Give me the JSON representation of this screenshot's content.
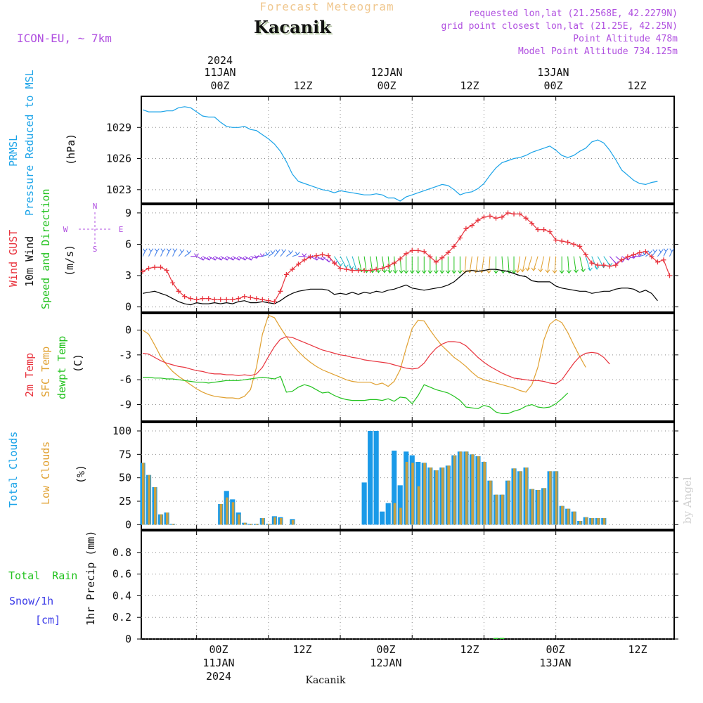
{
  "header": {
    "subtitle": "Forecast Meteogram",
    "title": "Kacanik",
    "model": "ICON-EU, ~ 7km",
    "requested": "requested lon,lat (21.2568E, 42.2279N)",
    "grid_point": "grid point closest lon,lat (21.25E, 42.25N)",
    "point_altitude": "Point Altitude 478m",
    "model_altitude": "Model Point Altitude 734.125m"
  },
  "footer": {
    "place": "Kacanik",
    "credit": "by Angel"
  },
  "colors": {
    "pressure": "#1aa3e8",
    "gust": "#e8333d",
    "wind": "#000000",
    "direction": "#22c21e",
    "t2m": "#e8333d",
    "sfc": "#e0a030",
    "dewpt": "#22c21e",
    "total_clouds": "#1a9ae8",
    "low_clouds": "#c8a040",
    "rain": "#22c21e",
    "snow": "#3a3ae8",
    "header_title_shadow": "#b8c8a8",
    "subtitle": "#f0c890",
    "info": "#b050e0"
  },
  "time_axis": {
    "top_labels": [
      {
        "line1": "2024",
        "line2": "11JAN",
        "line3": "00Z"
      },
      {
        "line1": "",
        "line2": "",
        "line3": "12Z"
      },
      {
        "line1": "",
        "line2": "12JAN",
        "line3": "00Z"
      },
      {
        "line1": "",
        "line2": "",
        "line3": "12Z"
      },
      {
        "line1": "",
        "line2": "13JAN",
        "line3": "00Z"
      },
      {
        "line1": "",
        "line2": "",
        "line3": "12Z"
      }
    ],
    "bottom_labels": [
      {
        "line1": "00Z",
        "line2": "11JAN",
        "line3": "2024"
      },
      {
        "line1": "12Z",
        "line2": "",
        "line3": ""
      },
      {
        "line1": "00Z",
        "line2": "12JAN",
        "line3": ""
      },
      {
        "line1": "12Z",
        "line2": "",
        "line3": ""
      },
      {
        "line1": "00Z",
        "line2": "13JAN",
        "line3": ""
      },
      {
        "line1": "12Z",
        "line2": "",
        "line3": ""
      }
    ],
    "tick_hours": [
      9,
      21,
      33,
      45,
      57,
      69
    ]
  },
  "chart_data": [
    {
      "type": "line",
      "panel": "pressure",
      "ylabel_lines": [
        "PRMSL",
        "Pressure Reduced to MSL"
      ],
      "unit": "(hPa)",
      "x_hours_start": 0,
      "x_hours_step": 1,
      "ylim": [
        1021.7,
        1032.0
      ],
      "yticks": [
        1023,
        1026,
        1029
      ],
      "series": [
        {
          "name": "PRMSL",
          "values": [
            1030.7,
            1030.5,
            1030.5,
            1030.5,
            1030.6,
            1030.6,
            1030.9,
            1031.0,
            1030.9,
            1030.5,
            1030.1,
            1030.0,
            1030.0,
            1029.5,
            1029.1,
            1029.0,
            1029.0,
            1029.1,
            1028.8,
            1028.7,
            1028.3,
            1027.9,
            1027.4,
            1026.7,
            1025.7,
            1024.5,
            1023.8,
            1023.6,
            1023.4,
            1023.2,
            1023.0,
            1022.9,
            1022.7,
            1022.9,
            1022.8,
            1022.7,
            1022.6,
            1022.5,
            1022.5,
            1022.6,
            1022.5,
            1022.2,
            1022.2,
            1021.9,
            1022.3,
            1022.5,
            1022.7,
            1022.9,
            1023.1,
            1023.3,
            1023.5,
            1023.4,
            1023.0,
            1022.5,
            1022.7,
            1022.8,
            1023.1,
            1023.6,
            1024.4,
            1025.1,
            1025.6,
            1025.8,
            1026.0,
            1026.1,
            1026.3,
            1026.6,
            1026.8,
            1027.0,
            1027.2,
            1026.8,
            1026.3,
            1026.1,
            1026.3,
            1026.7,
            1027.0,
            1027.6,
            1027.8,
            1027.5,
            1026.8,
            1025.9,
            1024.9,
            1024.4,
            1023.9,
            1023.6,
            1023.5,
            1023.7,
            1023.8
          ]
        }
      ]
    },
    {
      "type": "line",
      "panel": "wind",
      "ylabel_lines": [
        "Wind GUST",
        "10m Wind",
        "Speed and Direction"
      ],
      "unit": "(m/s)",
      "compass": {
        "n": "N",
        "s": "S",
        "w": "W",
        "e": "E"
      },
      "x_hours_start": 0,
      "x_hours_step": 1,
      "ylim": [
        -0.5,
        9.8
      ],
      "yticks": [
        0,
        3,
        6,
        9
      ],
      "series": [
        {
          "name": "Wind GUST",
          "values": [
            3.4,
            3.7,
            3.8,
            3.8,
            3.5,
            2.3,
            1.5,
            1.0,
            0.8,
            0.7,
            0.8,
            0.8,
            0.7,
            0.7,
            0.7,
            0.7,
            0.8,
            1.0,
            0.9,
            0.8,
            0.7,
            0.6,
            0.5,
            1.5,
            3.1,
            3.6,
            4.1,
            4.5,
            4.8,
            4.9,
            5.0,
            4.9,
            4.2,
            3.7,
            3.6,
            3.5,
            3.5,
            3.5,
            3.5,
            3.6,
            3.7,
            3.9,
            4.2,
            4.6,
            5.1,
            5.4,
            5.4,
            5.3,
            4.8,
            4.3,
            4.7,
            5.2,
            5.8,
            6.6,
            7.5,
            7.8,
            8.3,
            8.6,
            8.7,
            8.5,
            8.6,
            9.0,
            8.9,
            8.9,
            8.5,
            8.0,
            7.4,
            7.4,
            7.2,
            6.4,
            6.3,
            6.2,
            6.0,
            5.8,
            5.0,
            4.2,
            4.0,
            4.0,
            3.9,
            4.0,
            4.5,
            4.8,
            5.0,
            5.2,
            5.3,
            4.8,
            4.3,
            4.5,
            3.0
          ]
        },
        {
          "name": "10m Wind",
          "values": [
            1.3,
            1.4,
            1.5,
            1.3,
            1.1,
            0.8,
            0.5,
            0.3,
            0.2,
            0.4,
            0.3,
            0.3,
            0.4,
            0.3,
            0.4,
            0.3,
            0.5,
            0.6,
            0.4,
            0.4,
            0.5,
            0.4,
            0.3,
            0.6,
            1.0,
            1.3,
            1.5,
            1.6,
            1.7,
            1.7,
            1.7,
            1.6,
            1.2,
            1.3,
            1.2,
            1.4,
            1.2,
            1.4,
            1.3,
            1.5,
            1.4,
            1.6,
            1.7,
            1.9,
            2.1,
            1.8,
            1.7,
            1.6,
            1.7,
            1.8,
            1.9,
            2.1,
            2.4,
            2.9,
            3.4,
            3.5,
            3.4,
            3.5,
            3.6,
            3.6,
            3.5,
            3.4,
            3.2,
            3.0,
            2.9,
            2.5,
            2.4,
            2.4,
            2.4,
            2.0,
            1.8,
            1.7,
            1.6,
            1.5,
            1.5,
            1.3,
            1.4,
            1.5,
            1.5,
            1.7,
            1.8,
            1.8,
            1.7,
            1.4,
            1.6,
            1.3,
            0.6
          ]
        }
      ],
      "arrow_hours": [
        0,
        1,
        2,
        3,
        4,
        5,
        6,
        7,
        8,
        9,
        10,
        11,
        12,
        13,
        14,
        15,
        16,
        17,
        18,
        19,
        20,
        21,
        22,
        23,
        24,
        25,
        26,
        27,
        28,
        29,
        30,
        31,
        32,
        33,
        34,
        35,
        36,
        37,
        38,
        39,
        40,
        41,
        42,
        43,
        44,
        45,
        46,
        47,
        48,
        49,
        50,
        51,
        52,
        53,
        54,
        55,
        56,
        57,
        58,
        59,
        60,
        61,
        62,
        63,
        64,
        65,
        66,
        67,
        68,
        69,
        70,
        71,
        72,
        73,
        74,
        75,
        76,
        77,
        78,
        79,
        80,
        81,
        82,
        83,
        84,
        85,
        86,
        87,
        88
      ],
      "arrow_direction_deg": [
        20,
        20,
        20,
        20,
        20,
        20,
        30,
        40,
        60,
        80,
        80,
        80,
        80,
        80,
        80,
        80,
        80,
        80,
        70,
        60,
        50,
        40,
        30,
        30,
        40,
        50,
        60,
        70,
        80,
        80,
        90,
        100,
        110,
        120,
        130,
        140,
        150,
        160,
        160,
        160,
        160,
        165,
        170,
        170,
        180,
        180,
        180,
        180,
        180,
        180,
        180,
        180,
        180,
        180,
        190,
        200,
        200,
        200,
        190,
        180,
        170,
        170,
        180,
        200,
        210,
        220,
        220,
        210,
        200,
        190,
        180,
        170,
        160,
        150,
        140,
        130,
        120,
        110,
        100,
        90,
        80,
        70,
        60,
        50,
        40,
        30,
        30,
        20,
        20
      ]
    },
    {
      "type": "line",
      "panel": "temperature",
      "ylabel_lines": [
        "2m Temp",
        "SFC Temp",
        "dewpt Temp"
      ],
      "unit": "(C)",
      "x_hours_start": 0,
      "x_hours_step": 1,
      "ylim": [
        -11.0,
        2.0
      ],
      "yticks": [
        -9,
        -6,
        -3,
        0
      ],
      "series": [
        {
          "name": "2m Temp",
          "values": [
            -2.8,
            -2.9,
            -3.3,
            -3.7,
            -4.0,
            -4.2,
            -4.4,
            -4.5,
            -4.7,
            -4.9,
            -5.0,
            -5.2,
            -5.3,
            -5.3,
            -5.4,
            -5.4,
            -5.5,
            -5.4,
            -5.5,
            -5.3,
            -4.5,
            -3.2,
            -2.0,
            -1.1,
            -0.8,
            -0.9,
            -1.2,
            -1.5,
            -1.8,
            -2.1,
            -2.4,
            -2.6,
            -2.8,
            -3.0,
            -3.1,
            -3.3,
            -3.4,
            -3.6,
            -3.7,
            -3.8,
            -3.9,
            -4.0,
            -4.2,
            -4.4,
            -4.6,
            -4.7,
            -4.6,
            -4.0,
            -3.0,
            -2.2,
            -1.7,
            -1.4,
            -1.4,
            -1.5,
            -1.9,
            -2.6,
            -3.3,
            -3.9,
            -4.4,
            -4.8,
            -5.2,
            -5.5,
            -5.8,
            -5.9,
            -6.0,
            -6.1,
            -6.1,
            -6.2,
            -6.4,
            -6.5,
            -6.0,
            -5.0,
            -4.0,
            -3.2,
            -2.8,
            -2.7,
            -2.8,
            -3.3,
            -4.1
          ]
        },
        {
          "name": "SFC Temp",
          "values": [
            0.0,
            -0.5,
            -1.8,
            -3.2,
            -4.2,
            -5.0,
            -5.6,
            -6.1,
            -6.6,
            -7.1,
            -7.5,
            -7.8,
            -8.0,
            -8.1,
            -8.2,
            -8.2,
            -8.3,
            -8.0,
            -7.2,
            -4.5,
            -0.5,
            1.8,
            1.5,
            0.3,
            -0.8,
            -1.8,
            -2.6,
            -3.3,
            -3.9,
            -4.4,
            -4.8,
            -5.1,
            -5.4,
            -5.7,
            -6.0,
            -6.2,
            -6.3,
            -6.3,
            -6.3,
            -6.6,
            -6.4,
            -6.8,
            -6.2,
            -4.8,
            -2.2,
            0.2,
            1.2,
            1.1,
            0.0,
            -1.0,
            -1.9,
            -2.6,
            -3.3,
            -3.8,
            -4.4,
            -5.1,
            -5.7,
            -6.0,
            -6.2,
            -6.4,
            -6.6,
            -6.8,
            -7.0,
            -7.3,
            -7.5,
            -6.6,
            -4.5,
            -1.2,
            0.7,
            1.3,
            0.9,
            -0.3,
            -1.8,
            -3.2,
            -4.5
          ]
        },
        {
          "name": "dewpt Temp",
          "values": [
            -5.7,
            -5.7,
            -5.8,
            -5.8,
            -5.9,
            -5.9,
            -6.0,
            -6.1,
            -6.2,
            -6.3,
            -6.3,
            -6.4,
            -6.3,
            -6.2,
            -6.1,
            -6.1,
            -6.1,
            -6.0,
            -5.9,
            -5.8,
            -5.7,
            -5.8,
            -5.9,
            -5.6,
            -7.5,
            -7.4,
            -6.9,
            -6.6,
            -6.8,
            -7.2,
            -7.6,
            -7.5,
            -7.9,
            -8.2,
            -8.4,
            -8.5,
            -8.5,
            -8.5,
            -8.4,
            -8.4,
            -8.5,
            -8.3,
            -8.6,
            -8.1,
            -8.2,
            -8.9,
            -7.9,
            -6.6,
            -6.9,
            -7.2,
            -7.4,
            -7.6,
            -8.0,
            -8.5,
            -9.3,
            -9.4,
            -9.5,
            -9.1,
            -9.3,
            -9.9,
            -10.1,
            -10.1,
            -9.8,
            -9.6,
            -9.2,
            -9.0,
            -9.3,
            -9.4,
            -9.3,
            -8.9,
            -8.3,
            -7.6
          ]
        }
      ]
    },
    {
      "type": "bar",
      "panel": "clouds",
      "ylabel_lines": [
        "Total Clouds",
        "Low Clouds"
      ],
      "unit": "(%)",
      "x_hours_start": 0,
      "x_hours_step": 1,
      "ylim": [
        -5,
        109
      ],
      "yticks": [
        0,
        25,
        50,
        75,
        100
      ],
      "series": [
        {
          "name": "Total Clouds",
          "values": [
            66,
            53,
            40,
            11,
            13,
            1,
            0,
            0,
            0,
            0,
            0,
            0,
            0,
            22,
            36,
            27,
            13,
            2,
            1,
            1,
            7,
            1,
            9,
            8,
            0,
            6,
            0,
            0,
            0,
            0,
            0,
            0,
            0,
            0,
            0,
            0,
            0,
            45,
            100,
            100,
            14,
            23,
            79,
            42,
            78,
            74,
            67,
            66,
            61,
            58,
            61,
            63,
            74,
            78,
            78,
            75,
            73,
            67,
            47,
            32,
            32,
            47,
            60,
            57,
            61,
            38,
            37,
            39,
            57,
            57,
            20,
            17,
            14,
            4,
            8,
            7,
            7,
            7
          ]
        },
        {
          "name": "Low Clouds",
          "values": [
            66,
            53,
            40,
            11,
            13,
            1,
            0,
            0,
            0,
            0,
            0,
            0,
            0,
            22,
            29,
            24,
            11,
            2,
            1,
            1,
            7,
            1,
            8,
            7,
            0,
            5,
            0,
            0,
            0,
            0,
            0,
            0,
            0,
            0,
            0,
            0,
            0,
            0,
            0,
            0,
            0,
            0,
            23,
            18,
            67,
            66,
            41,
            66,
            61,
            58,
            61,
            63,
            74,
            78,
            78,
            75,
            73,
            67,
            47,
            32,
            32,
            47,
            60,
            57,
            61,
            38,
            37,
            39,
            57,
            57,
            20,
            17,
            14,
            4,
            8,
            7,
            7,
            7
          ]
        }
      ]
    },
    {
      "type": "bar",
      "panel": "precip",
      "ylabel_lines": [
        "Total Rain",
        "Snow/1h",
        "[cm]"
      ],
      "unit": "1hr Precip (mm)",
      "x_hours_start": 0,
      "x_hours_step": 1,
      "ylim": [
        0,
        1.0
      ],
      "yticks": [
        0,
        0.2,
        0.4,
        0.6,
        0.8
      ],
      "ytick_labels": [
        "0",
        "0.2",
        "0.4",
        "0.6",
        "0.8"
      ],
      "series": [
        {
          "name": "Total Rain",
          "values": [
            0,
            0,
            0,
            0,
            0,
            0,
            0,
            0,
            0,
            0,
            0,
            0,
            0,
            0,
            0,
            0,
            0,
            0,
            0,
            0,
            0,
            0,
            0,
            0,
            0,
            0,
            0,
            0,
            0,
            0,
            0,
            0,
            0,
            0,
            0,
            0,
            0,
            0,
            0,
            0,
            0,
            0,
            0,
            0,
            0,
            0,
            0,
            0,
            0,
            0,
            0,
            0,
            0,
            0,
            0,
            0,
            0,
            0,
            0,
            0.01,
            0.01,
            0,
            0,
            0,
            0,
            0,
            0,
            0,
            0,
            0,
            0,
            0,
            0,
            0,
            0,
            0,
            0,
            0,
            0,
            0,
            0,
            0,
            0,
            0,
            0,
            0,
            0,
            0,
            0
          ]
        },
        {
          "name": "Snow/1h",
          "values": []
        }
      ]
    }
  ]
}
